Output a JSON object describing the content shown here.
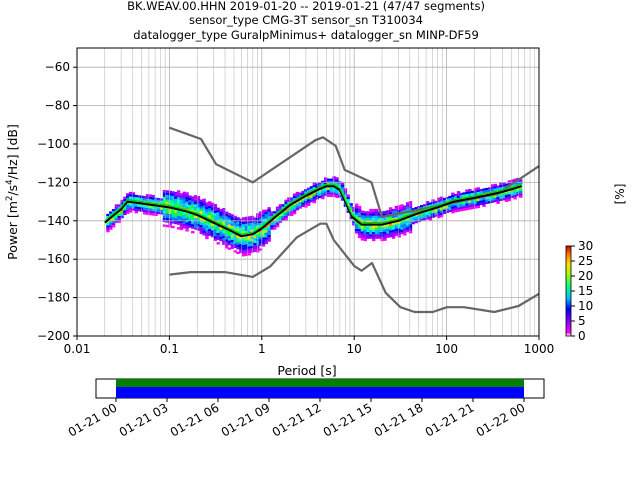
{
  "chart_data": {
    "type": "heatmap",
    "title_lines": [
      "BK.WEAV.00.HHN   2019-01-20 -- 2019-01-21  (47/47 segments)",
      "sensor_type CMG-3T sensor_sn T310034",
      "datalogger_type GuralpMinimus+ datalogger_sn MINP-DF59"
    ],
    "xlabel": "Period [s]",
    "ylabel_parts": {
      "pre": "Power [m",
      "sup1": "2",
      "mid": "/s",
      "sup2": "4",
      "post": "/Hz] [dB]"
    },
    "x_scale": "log",
    "xlim": [
      0.01,
      1000
    ],
    "x_ticks": [
      0.01,
      0.1,
      1,
      10,
      100,
      1000
    ],
    "x_tick_labels": [
      "0.01",
      "0.1",
      "1",
      "10",
      "100",
      "1000"
    ],
    "ylim": [
      -200,
      -50
    ],
    "y_ticks": [
      -200,
      -180,
      -160,
      -140,
      -120,
      -100,
      -80,
      -60
    ],
    "y_tick_labels": [
      "−200",
      "−180",
      "−160",
      "−140",
      "−120",
      "−100",
      "−80",
      "−60"
    ],
    "grid": true,
    "colorbar": {
      "label": "[%]",
      "range": [
        0,
        30
      ],
      "ticks": [
        0,
        5,
        10,
        15,
        20,
        25,
        30
      ],
      "tick_labels": [
        "0",
        "5",
        "10",
        "15",
        "20",
        "25",
        "30"
      ]
    },
    "series": [
      {
        "role": "model_high",
        "color": "#666666",
        "x": [
          0.1,
          0.22,
          0.32,
          0.8,
          3.8,
          4.6,
          6.3,
          7.9,
          15.4,
          20,
          354.8,
          1000
        ],
        "y": [
          -91.5,
          -97.4,
          -110.5,
          -120,
          -98,
          -96.5,
          -101,
          -113.5,
          -120,
          -138,
          -126,
          -111.5
        ]
      },
      {
        "role": "model_low",
        "color": "#666666",
        "x": [
          0.1,
          0.17,
          0.4,
          0.8,
          1.24,
          2.4,
          4.3,
          5,
          6,
          10,
          12,
          15.6,
          21.9,
          31.6,
          45,
          70.8,
          101,
          154,
          328,
          600,
          1000
        ],
        "y": [
          -168,
          -166.7,
          -166.7,
          -169.2,
          -163.7,
          -148.6,
          -141.5,
          -141.5,
          -150,
          -163.5,
          -166,
          -162,
          -177.5,
          -185,
          -187.5,
          -187.5,
          -185,
          -185,
          -187.5,
          -184.4,
          -178
        ]
      },
      {
        "role": "mode_median",
        "color": "#000000",
        "x": [
          0.02,
          0.025,
          0.03,
          0.035,
          0.05,
          0.1,
          0.15,
          0.2,
          0.3,
          0.45,
          0.6,
          0.8,
          1.0,
          1.4,
          2,
          3,
          4,
          5,
          6,
          7,
          8,
          9.5,
          12,
          20,
          30,
          50,
          80,
          120,
          200,
          400,
          650
        ],
        "y": [
          -141,
          -137,
          -134,
          -130,
          -131,
          -133,
          -135,
          -137,
          -141,
          -145,
          -148,
          -147,
          -144,
          -138,
          -132,
          -127,
          -124,
          -122,
          -122,
          -124,
          -130,
          -138,
          -142,
          -142,
          -140,
          -136,
          -133,
          -130,
          -128,
          -125,
          -122
        ]
      },
      {
        "role": "mean",
        "color": "#00cc00",
        "x": [
          0.02,
          0.03,
          0.035,
          0.05,
          0.1,
          0.2,
          0.3,
          0.45,
          0.6,
          0.8,
          1.0,
          1.4,
          2,
          3,
          4,
          5,
          6,
          7,
          8,
          9.5,
          12,
          20,
          30,
          50,
          80,
          120,
          200,
          400,
          650
        ],
        "y": [
          -140,
          -133,
          -129,
          -130,
          -132,
          -136,
          -140,
          -144,
          -147,
          -146,
          -143,
          -137,
          -131,
          -126,
          -123,
          -121,
          -121,
          -123,
          -129,
          -137,
          -141,
          -141,
          -139,
          -135,
          -132,
          -129,
          -127,
          -124,
          -121
        ]
      }
    ],
    "timeline": {
      "tick_labels": [
        "01-21 00",
        "01-21 03",
        "01-21 06",
        "01-21 09",
        "01-21 12",
        "01-21 15",
        "01-21 18",
        "01-21 21",
        "01-22 00"
      ],
      "coverage_color": "#0000ff",
      "gap_color": "#008000"
    }
  }
}
